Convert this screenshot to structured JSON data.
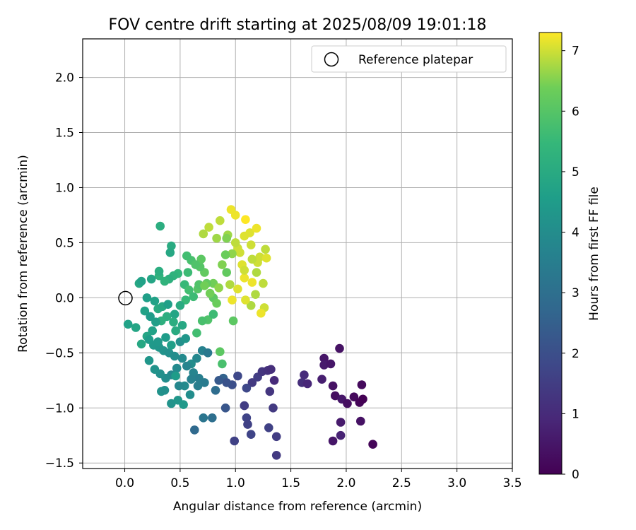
{
  "chart_data": {
    "type": "scatter",
    "title": "FOV centre drift starting at 2025/08/09 19:01:18",
    "xlabel": "Angular distance from reference (arcmin)",
    "ylabel": "Rotation from reference (arcmin)",
    "xlim": [
      -0.38,
      3.5
    ],
    "ylim": [
      -1.55,
      2.35
    ],
    "xticks": [
      "0.0",
      "0.5",
      "1.0",
      "1.5",
      "2.0",
      "2.5",
      "3.0",
      "3.5"
    ],
    "yticks": [
      "2.0",
      "1.5",
      "1.0",
      "0.5",
      "0.0",
      "−0.5",
      "−1.0",
      "−1.5"
    ],
    "grid": true,
    "colormap": "viridis",
    "colorbar": {
      "label": "Hours from first FF file",
      "range": [
        0,
        7.3
      ],
      "ticks": [
        "0",
        "1",
        "2",
        "3",
        "4",
        "5",
        "6",
        "7"
      ]
    },
    "legend": {
      "entries": [
        "Reference platepar"
      ],
      "position": "top-right"
    },
    "reference": {
      "x": 0.0,
      "y": 0.0,
      "label": "Reference platepar"
    },
    "points": [
      [
        0.8,
        0.13,
        6.4
      ],
      [
        0.72,
        0.23,
        6.2
      ],
      [
        0.66,
        0.08,
        6.0
      ],
      [
        0.93,
        0.57,
        6.7
      ],
      [
        0.86,
        0.7,
        6.9
      ],
      [
        0.71,
        0.58,
        6.8
      ],
      [
        0.76,
        0.64,
        6.9
      ],
      [
        1.02,
        0.45,
        7.0
      ],
      [
        1.08,
        0.56,
        7.1
      ],
      [
        0.96,
        0.8,
        7.2
      ],
      [
        1.0,
        0.75,
        7.2
      ],
      [
        1.09,
        0.71,
        7.3
      ],
      [
        1.13,
        0.59,
        7.1
      ],
      [
        1.19,
        0.63,
        7.2
      ],
      [
        1.14,
        0.48,
        7.0
      ],
      [
        1.04,
        0.41,
        7.0
      ],
      [
        1.06,
        0.3,
        7.1
      ],
      [
        1.08,
        0.18,
        7.2
      ],
      [
        1.15,
        0.14,
        7.2
      ],
      [
        1.2,
        0.32,
        7.0
      ],
      [
        1.27,
        0.44,
        6.9
      ],
      [
        1.22,
        0.37,
        7.0
      ],
      [
        1.28,
        0.36,
        7.1
      ],
      [
        1.25,
        0.13,
        6.9
      ],
      [
        1.19,
        0.23,
        6.8
      ],
      [
        1.15,
        0.35,
        6.9
      ],
      [
        1.18,
        0.03,
        6.8
      ],
      [
        1.26,
        -0.09,
        7.0
      ],
      [
        1.23,
        -0.14,
        7.2
      ],
      [
        1.14,
        -0.07,
        6.8
      ],
      [
        1.09,
        -0.02,
        7.1
      ],
      [
        1.0,
        0.5,
        6.9
      ],
      [
        0.97,
        0.4,
        6.6
      ],
      [
        0.91,
        0.39,
        6.3
      ],
      [
        0.88,
        0.3,
        6.5
      ],
      [
        0.92,
        0.23,
        6.2
      ],
      [
        0.95,
        0.12,
        6.8
      ],
      [
        1.02,
        0.08,
        7.1
      ],
      [
        1.08,
        0.25,
        7.0
      ],
      [
        0.85,
        0.09,
        6.6
      ],
      [
        0.8,
        0.0,
        6.1
      ],
      [
        0.83,
        -0.05,
        6.3
      ],
      [
        0.77,
        0.04,
        6.4
      ],
      [
        0.83,
        0.54,
        6.7
      ],
      [
        0.92,
        0.54,
        6.5
      ],
      [
        0.98,
        -0.21,
        6.1
      ],
      [
        0.97,
        -0.02,
        7.2
      ],
      [
        0.74,
        0.13,
        6.2
      ],
      [
        0.68,
        0.28,
        6.0
      ],
      [
        0.67,
        0.12,
        5.9
      ],
      [
        0.69,
        0.35,
        6.1
      ],
      [
        0.72,
        0.11,
        6.4
      ],
      [
        0.75,
        -0.2,
        5.9
      ],
      [
        0.7,
        -0.21,
        5.8
      ],
      [
        0.65,
        -0.32,
        5.7
      ],
      [
        0.8,
        -0.15,
        5.6
      ],
      [
        0.6,
        0.34,
        5.8
      ],
      [
        0.56,
        0.38,
        5.7
      ],
      [
        0.54,
        0.12,
        5.5
      ],
      [
        0.58,
        0.07,
        5.7
      ],
      [
        0.62,
        0.01,
        5.6
      ],
      [
        0.55,
        -0.02,
        5.5
      ],
      [
        0.64,
        0.3,
        5.9
      ],
      [
        0.57,
        0.23,
        5.6
      ],
      [
        0.48,
        0.22,
        5.4
      ],
      [
        0.44,
        0.2,
        5.3
      ],
      [
        0.4,
        0.17,
        5.2
      ],
      [
        0.36,
        0.15,
        5.3
      ],
      [
        0.31,
        0.2,
        5.3
      ],
      [
        0.31,
        0.24,
        5.1
      ],
      [
        0.42,
        0.47,
        5.0
      ],
      [
        0.41,
        0.41,
        4.9
      ],
      [
        0.32,
        0.65,
        5.1
      ],
      [
        0.24,
        0.17,
        4.8
      ],
      [
        0.13,
        0.13,
        4.9
      ],
      [
        0.15,
        0.15,
        4.7
      ],
      [
        0.2,
        0.0,
        4.6
      ],
      [
        0.27,
        -0.03,
        4.7
      ],
      [
        0.3,
        -0.1,
        5.0
      ],
      [
        0.34,
        -0.08,
        4.9
      ],
      [
        0.39,
        -0.06,
        4.6
      ],
      [
        0.45,
        -0.15,
        4.8
      ],
      [
        0.5,
        -0.07,
        5.0
      ],
      [
        0.44,
        -0.22,
        5.1
      ],
      [
        0.38,
        -0.17,
        5.1
      ],
      [
        0.33,
        -0.21,
        5.2
      ],
      [
        0.28,
        -0.22,
        4.6
      ],
      [
        0.25,
        -0.3,
        4.7
      ],
      [
        0.2,
        -0.35,
        4.8
      ],
      [
        0.15,
        -0.42,
        4.9
      ],
      [
        0.1,
        -0.27,
        4.8
      ],
      [
        0.03,
        -0.24,
        4.7
      ],
      [
        0.22,
        -0.38,
        4.5
      ],
      [
        0.26,
        -0.43,
        4.4
      ],
      [
        0.31,
        -0.45,
        4.3
      ],
      [
        0.35,
        -0.48,
        4.2
      ],
      [
        0.4,
        -0.5,
        4.1
      ],
      [
        0.45,
        -0.53,
        4.0
      ],
      [
        0.5,
        -0.4,
        4.1
      ],
      [
        0.55,
        -0.37,
        4.3
      ],
      [
        0.6,
        -0.6,
        4.0
      ],
      [
        0.65,
        -0.55,
        3.8
      ],
      [
        0.7,
        -0.48,
        3.6
      ],
      [
        0.52,
        -0.55,
        3.9
      ],
      [
        0.56,
        -0.62,
        3.7
      ],
      [
        0.62,
        -0.68,
        3.7
      ],
      [
        0.67,
        -0.73,
        3.5
      ],
      [
        0.72,
        -0.77,
        3.4
      ],
      [
        0.47,
        -0.64,
        3.9
      ],
      [
        0.42,
        -0.7,
        3.8
      ],
      [
        0.37,
        -0.73,
        4.0
      ],
      [
        0.32,
        -0.69,
        4.1
      ],
      [
        0.27,
        -0.65,
        4.2
      ],
      [
        0.22,
        -0.57,
        4.3
      ],
      [
        0.33,
        -0.85,
        4.2
      ],
      [
        0.36,
        -0.84,
        4.1
      ],
      [
        0.42,
        -0.96,
        4.2
      ],
      [
        0.48,
        -0.93,
        4.3
      ],
      [
        0.53,
        -0.97,
        4.4
      ],
      [
        0.59,
        -0.88,
        4.0
      ],
      [
        0.54,
        -0.8,
        3.9
      ],
      [
        0.49,
        -0.8,
        3.8
      ],
      [
        0.6,
        -0.74,
        3.6
      ],
      [
        0.66,
        -0.8,
        3.5
      ],
      [
        0.71,
        -1.09,
        3.2
      ],
      [
        0.79,
        -1.09,
        3.0
      ],
      [
        0.63,
        -1.2,
        2.8
      ],
      [
        0.82,
        -0.84,
        2.9
      ],
      [
        0.75,
        -0.5,
        3.3
      ],
      [
        0.89,
        -0.73,
        2.6
      ],
      [
        0.91,
        -1.0,
        2.2
      ],
      [
        0.97,
        -0.79,
        2.0
      ],
      [
        0.99,
        -1.3,
        1.6
      ],
      [
        1.02,
        -0.71,
        1.8
      ],
      [
        1.08,
        -0.98,
        1.5
      ],
      [
        1.1,
        -1.09,
        1.7
      ],
      [
        1.11,
        -1.15,
        1.6
      ],
      [
        1.15,
        -0.77,
        1.4
      ],
      [
        1.2,
        -0.72,
        1.5
      ],
      [
        1.24,
        -0.67,
        1.3
      ],
      [
        1.29,
        -0.66,
        1.2
      ],
      [
        1.32,
        -0.65,
        1.1
      ],
      [
        1.35,
        -0.75,
        1.0
      ],
      [
        1.31,
        -0.85,
        1.3
      ],
      [
        1.34,
        -1.0,
        1.4
      ],
      [
        1.3,
        -1.18,
        1.6
      ],
      [
        1.37,
        -1.26,
        1.5
      ],
      [
        1.37,
        -1.43,
        1.4
      ],
      [
        1.14,
        -1.24,
        1.7
      ],
      [
        1.1,
        -0.82,
        1.8
      ],
      [
        0.92,
        -0.77,
        2.1
      ],
      [
        0.85,
        -0.75,
        2.3
      ],
      [
        0.86,
        -0.49,
        6.1
      ],
      [
        0.88,
        -0.6,
        5.8
      ],
      [
        0.46,
        -0.71,
        4.5
      ],
      [
        1.6,
        -0.77,
        1.1
      ],
      [
        1.62,
        -0.7,
        1.0
      ],
      [
        1.65,
        -0.78,
        0.9
      ],
      [
        1.78,
        -0.74,
        0.7
      ],
      [
        1.8,
        -0.55,
        0.5
      ],
      [
        1.8,
        -0.61,
        0.6
      ],
      [
        1.86,
        -0.6,
        0.5
      ],
      [
        1.88,
        -0.8,
        0.4
      ],
      [
        1.9,
        -0.89,
        0.3
      ],
      [
        1.94,
        -0.46,
        0.4
      ],
      [
        1.96,
        -0.92,
        0.5
      ],
      [
        1.95,
        -1.13,
        0.6
      ],
      [
        1.95,
        -1.25,
        0.8
      ],
      [
        1.88,
        -1.3,
        0.5
      ],
      [
        2.01,
        -0.96,
        0.3
      ],
      [
        2.07,
        -0.9,
        0.2
      ],
      [
        2.12,
        -0.95,
        0.1
      ],
      [
        2.14,
        -0.79,
        0.2
      ],
      [
        2.15,
        -0.92,
        0.0
      ],
      [
        2.13,
        -1.12,
        0.4
      ],
      [
        2.24,
        -1.33,
        0.1
      ],
      [
        0.42,
        -0.43,
        4.6
      ],
      [
        0.37,
        -0.36,
        4.5
      ],
      [
        0.3,
        -0.4,
        4.4
      ],
      [
        0.18,
        -0.12,
        4.7
      ],
      [
        0.23,
        -0.17,
        4.5
      ],
      [
        0.46,
        -0.3,
        5.0
      ],
      [
        0.52,
        -0.25,
        4.9
      ]
    ]
  }
}
